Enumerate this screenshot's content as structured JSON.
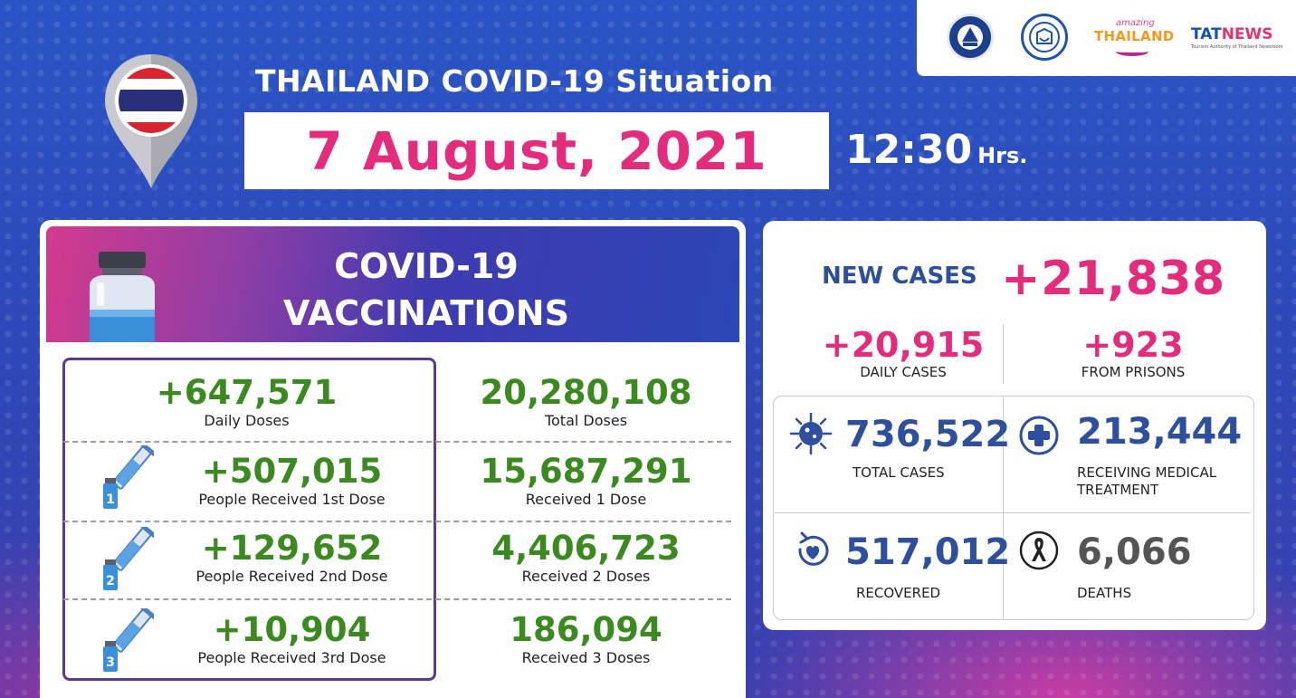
{
  "header": {
    "title": "THAILAND COVID-19 Situation",
    "date": "7 August, 2021",
    "time": "12:30",
    "time_unit": "Hrs."
  },
  "logos": {
    "amazing_small": "amazing",
    "amazing_main": "THAILAND",
    "tat": "TAT",
    "news": "NEWS",
    "tat_sub": "Tourism Authority of Thailand Newsroom"
  },
  "vaccinations": {
    "title_line1": "COVID-19",
    "title_line2": "VACCINATIONS",
    "rows": [
      {
        "left_value": "+647,571",
        "left_label": "Daily Doses",
        "right_value": "20,280,108",
        "right_label": "Total Doses"
      },
      {
        "left_value": "+507,015",
        "left_label": "People Received 1st Dose",
        "right_value": "15,687,291",
        "right_label": "Received 1 Dose",
        "dose": "1"
      },
      {
        "left_value": "+129,652",
        "left_label": "People Received 2nd Dose",
        "right_value": "4,406,723",
        "right_label": "Received 2 Doses",
        "dose": "2"
      },
      {
        "left_value": "+10,904",
        "left_label": "People Received 3rd Dose",
        "right_value": "186,094",
        "right_label": "Received 3 Doses",
        "dose": "3"
      }
    ]
  },
  "cases": {
    "new_cases_label": "NEW CASES",
    "new_cases_value": "+21,838",
    "daily_value": "+20,915",
    "daily_label": "DAILY CASES",
    "prisons_value": "+923",
    "prisons_label": "FROM PRISONS",
    "total_value": "736,522",
    "total_label": "TOTAL CASES",
    "treatment_value": "213,444",
    "treatment_label_line1": "RECEIVING MEDICAL",
    "treatment_label_line2": "TREATMENT",
    "recovered_value": "517,012",
    "recovered_label": "RECOVERED",
    "deaths_value": "6,066",
    "deaths_label": "DEATHS"
  },
  "colors": {
    "pink": "#e42b7c",
    "green": "#3b8a1f",
    "navy": "#2d4f9e",
    "gray": "#555555"
  },
  "icons": [
    "location-pin-icon",
    "thai-flag-icon",
    "vaccine-vial-icon",
    "syringe-icon",
    "virus-icon",
    "medical-cross-icon",
    "recovered-heart-icon",
    "mourning-ribbon-icon"
  ]
}
